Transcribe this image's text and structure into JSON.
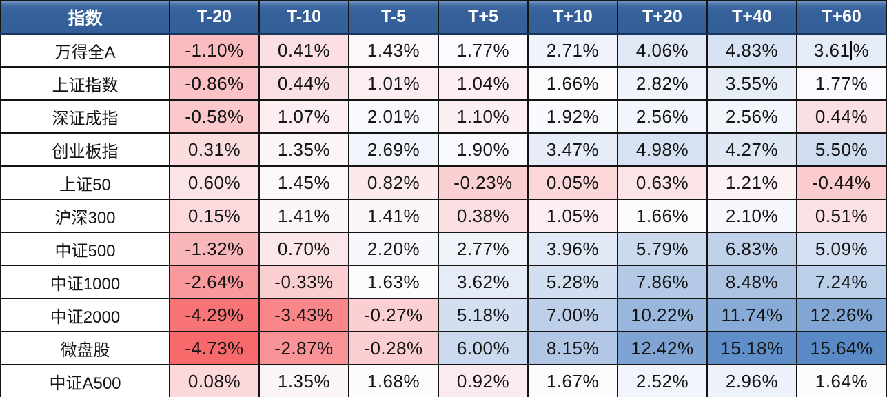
{
  "chart_data": {
    "type": "heatmap",
    "title": "",
    "corner_header": "指数",
    "columns": [
      "T-20",
      "T-10",
      "T-5",
      "T+5",
      "T+10",
      "T+20",
      "T+40",
      "T+60"
    ],
    "rows": [
      {
        "label": "万得全A",
        "values": [
          -1.1,
          0.41,
          1.43,
          1.77,
          2.71,
          4.06,
          4.83,
          3.61
        ]
      },
      {
        "label": "上证指数",
        "values": [
          -0.86,
          0.44,
          1.01,
          1.04,
          1.66,
          2.82,
          3.55,
          1.77
        ]
      },
      {
        "label": "深证成指",
        "values": [
          -0.58,
          1.07,
          2.01,
          1.1,
          1.92,
          2.56,
          2.56,
          0.44
        ]
      },
      {
        "label": "创业板指",
        "values": [
          0.31,
          1.35,
          2.69,
          1.9,
          3.47,
          4.98,
          4.27,
          5.5
        ]
      },
      {
        "label": "上证50",
        "values": [
          0.6,
          1.45,
          0.82,
          -0.23,
          0.05,
          0.63,
          1.21,
          -0.44
        ]
      },
      {
        "label": "沪深300",
        "values": [
          0.15,
          1.41,
          1.41,
          0.38,
          1.05,
          1.66,
          2.1,
          0.51
        ]
      },
      {
        "label": "中证500",
        "values": [
          -1.32,
          0.7,
          2.2,
          2.77,
          3.96,
          5.79,
          6.83,
          5.09
        ]
      },
      {
        "label": "中证1000",
        "values": [
          -2.64,
          -0.33,
          1.63,
          3.62,
          5.28,
          7.86,
          8.48,
          7.24
        ]
      },
      {
        "label": "中证2000",
        "values": [
          -4.29,
          -3.43,
          -0.27,
          5.18,
          7.0,
          10.22,
          11.74,
          12.26
        ]
      },
      {
        "label": "微盘股",
        "values": [
          -4.73,
          -2.87,
          -0.28,
          6.0,
          8.15,
          12.42,
          15.18,
          15.64
        ]
      },
      {
        "label": "中证A500",
        "values": [
          0.08,
          1.35,
          1.68,
          0.92,
          1.67,
          2.52,
          2.96,
          1.64
        ]
      }
    ],
    "value_format": "percent_2dp",
    "value_suffix": "%",
    "color_scale": {
      "min": -4.73,
      "mid": 1.665,
      "max": 15.64,
      "min_color": "#F8696B",
      "mid_color": "#FCFCFF",
      "max_color": "#5A8AC6"
    },
    "layout": {
      "header_bg": "#35609A",
      "header_bg_highlight": "#7397C4",
      "header_text_color": "#FFFFFF",
      "border_color": "#141414",
      "row_label_bg": "#FFFFFF",
      "body_text_color": "#141414"
    }
  },
  "caret": {
    "row": 0,
    "col": 7
  }
}
